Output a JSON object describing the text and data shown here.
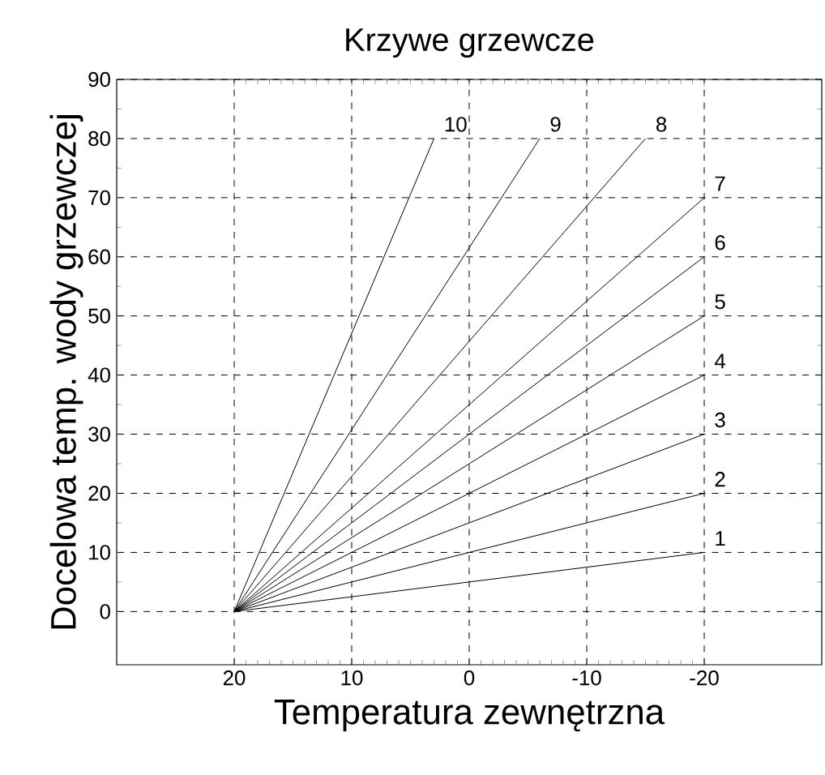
{
  "chart_data": {
    "type": "line",
    "title": "Krzywe grzewcze",
    "xlabel": "Temperatura zewnętrzna",
    "ylabel": "Docelowa temp. wody grzewczej",
    "xlim": [
      30,
      -30
    ],
    "ylim": [
      -9,
      90
    ],
    "xticks": [
      20,
      10,
      0,
      -10,
      -20
    ],
    "yticks": [
      0,
      10,
      20,
      30,
      40,
      50,
      60,
      70,
      80,
      90
    ],
    "grid": true,
    "marker": "none",
    "line_style": "solid",
    "series": [
      {
        "name": "1",
        "color": "#000000",
        "x": [
          20,
          -20
        ],
        "values": [
          0,
          10
        ]
      },
      {
        "name": "2",
        "color": "#000000",
        "x": [
          20,
          -20
        ],
        "values": [
          0,
          20
        ]
      },
      {
        "name": "3",
        "color": "#000000",
        "x": [
          20,
          -20
        ],
        "values": [
          0,
          30
        ]
      },
      {
        "name": "4",
        "color": "#000000",
        "x": [
          20,
          -20
        ],
        "values": [
          0,
          40
        ]
      },
      {
        "name": "5",
        "color": "#000000",
        "x": [
          20,
          -20
        ],
        "values": [
          0,
          50
        ]
      },
      {
        "name": "6",
        "color": "#000000",
        "x": [
          20,
          -20
        ],
        "values": [
          0,
          60
        ]
      },
      {
        "name": "7",
        "color": "#000000",
        "x": [
          20,
          -20
        ],
        "values": [
          0,
          70
        ]
      },
      {
        "name": "8",
        "color": "#000000",
        "x": [
          20,
          -15
        ],
        "values": [
          0,
          80
        ]
      },
      {
        "name": "9",
        "color": "#000000",
        "x": [
          20,
          -6
        ],
        "values": [
          0,
          80
        ]
      },
      {
        "name": "10",
        "color": "#000000",
        "x": [
          20,
          3
        ],
        "values": [
          0,
          80
        ]
      }
    ]
  }
}
